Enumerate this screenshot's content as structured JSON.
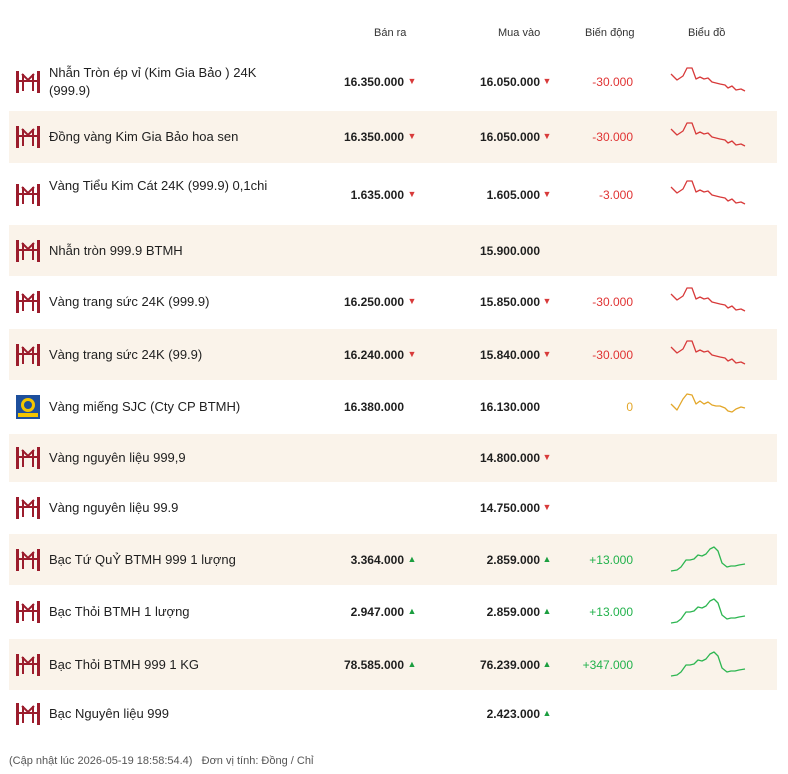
{
  "header": {
    "sell": "Bán ra",
    "buy": "Mua vào",
    "change": "Biến động",
    "chart": "Biểu đồ"
  },
  "colors": {
    "down": "#d83a3a",
    "up": "#1b9e3f",
    "zero": "#e3a72a",
    "alt_row": "#faf3ea",
    "brand": "#9b1c2c"
  },
  "rows": [
    {
      "name": "Nhẫn Tròn ép vỉ (Kim Gia Bảo ) 24K (999.9)",
      "logo": "btmh-logo",
      "sell": "16.350.000",
      "sell_dir": "down",
      "buy": "16.050.000",
      "buy_dir": "down",
      "change": "-30.000",
      "trend": "down"
    },
    {
      "name": "Đồng vàng Kim Gia Bảo hoa sen",
      "logo": "btmh-logo",
      "sell": "16.350.000",
      "sell_dir": "down",
      "buy": "16.050.000",
      "buy_dir": "down",
      "change": "-30.000",
      "trend": "down"
    },
    {
      "name": "Vàng Tiểu Kim Cát 24K (999.9) 0,1chi",
      "logo": "btmh-logo",
      "sell": "1.635.000",
      "sell_dir": "down",
      "buy": "1.605.000",
      "buy_dir": "down",
      "change": "-3.000",
      "trend": "down"
    },
    {
      "name": "Nhẫn tròn 999.9 BTMH",
      "logo": "btmh-logo",
      "sell": "",
      "sell_dir": "",
      "buy": "15.900.000",
      "buy_dir": "",
      "change": "",
      "trend": ""
    },
    {
      "name": "Vàng trang sức 24K (999.9)",
      "logo": "btmh-logo",
      "sell": "16.250.000",
      "sell_dir": "down",
      "buy": "15.850.000",
      "buy_dir": "down",
      "change": "-30.000",
      "trend": "down"
    },
    {
      "name": "Vàng trang sức 24K (99.9)",
      "logo": "btmh-logo",
      "sell": "16.240.000",
      "sell_dir": "down",
      "buy": "15.840.000",
      "buy_dir": "down",
      "change": "-30.000",
      "trend": "down"
    },
    {
      "name": "Vàng miếng SJC (Cty CP BTMH)",
      "logo": "sjc-logo",
      "sell": "16.380.000",
      "sell_dir": "",
      "buy": "16.130.000",
      "buy_dir": "",
      "change": "0",
      "trend": "flat"
    },
    {
      "name": "Vàng nguyên liệu 999,9",
      "logo": "btmh-logo",
      "sell": "",
      "sell_dir": "",
      "buy": "14.800.000",
      "buy_dir": "down",
      "change": "",
      "trend": ""
    },
    {
      "name": "Vàng nguyên liệu 99.9",
      "logo": "btmh-logo",
      "sell": "",
      "sell_dir": "",
      "buy": "14.750.000",
      "buy_dir": "down",
      "change": "",
      "trend": ""
    },
    {
      "name": "Bạc Tứ QuỶ BTMH 999 1 lượng",
      "logo": "btmh-logo",
      "sell": "3.364.000",
      "sell_dir": "up",
      "buy": "2.859.000",
      "buy_dir": "up",
      "change": "+13.000",
      "trend": "up"
    },
    {
      "name": "Bạc Thỏi BTMH 1 lượng",
      "logo": "btmh-logo",
      "sell": "2.947.000",
      "sell_dir": "up",
      "buy": "2.859.000",
      "buy_dir": "up",
      "change": "+13.000",
      "trend": "up"
    },
    {
      "name": "Bạc Thỏi BTMH 999 1 KG",
      "logo": "btmh-logo",
      "sell": "78.585.000",
      "sell_dir": "up",
      "buy": "76.239.000",
      "buy_dir": "up",
      "change": "+347.000",
      "trend": "up"
    },
    {
      "name": "Bạc Nguyên liệu 999",
      "logo": "btmh-logo",
      "sell": "",
      "sell_dir": "",
      "buy": "2.423.000",
      "buy_dir": "up",
      "change": "",
      "trend": ""
    }
  ],
  "footer": {
    "updated": "(Cập nhật lúc 2026-05-19 18:58:54.4)",
    "unit": "Đơn vị tính: Đồng / Chỉ"
  }
}
